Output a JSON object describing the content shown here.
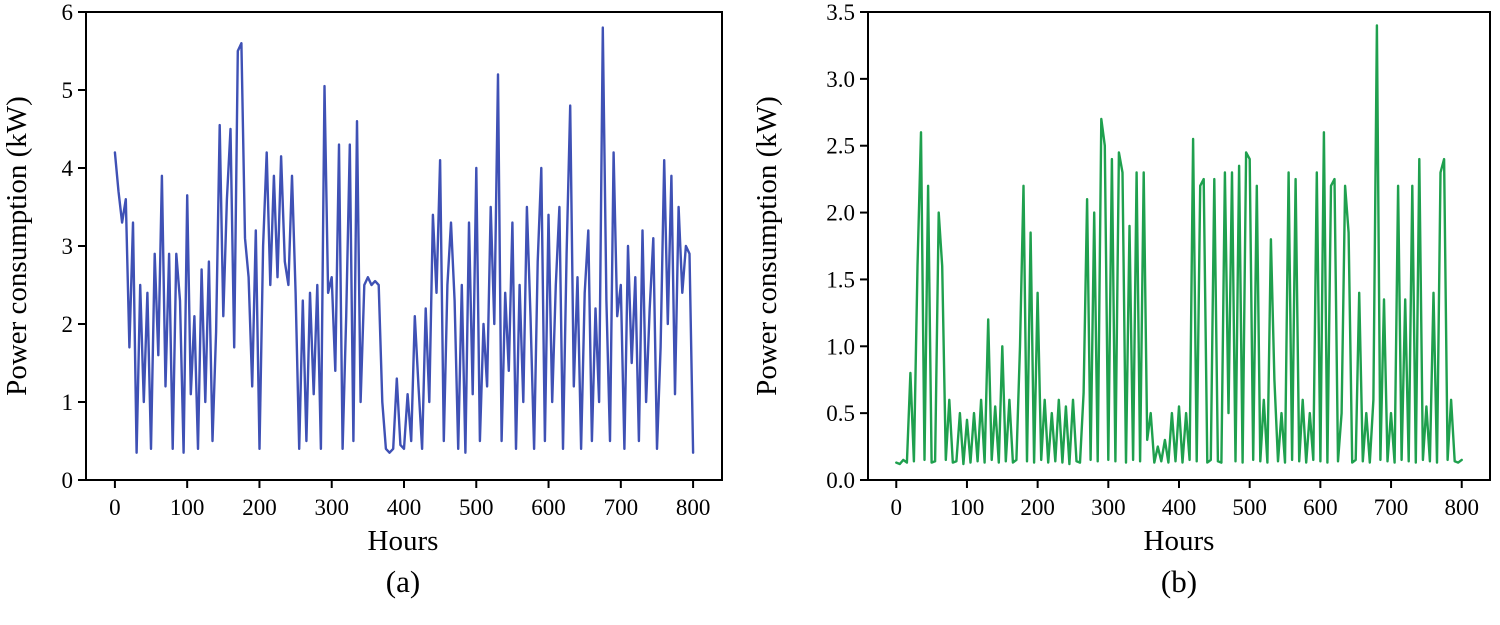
{
  "figure": {
    "background": "#ffffff",
    "description": "Two hourly power-consumption time series plots, panel (a) in blue and panel (b) in green"
  },
  "chart_data": [
    {
      "type": "line",
      "caption": "(a)",
      "xlabel": "Hours",
      "ylabel": "Power consumption (kW)",
      "color": "#3f51b5",
      "xlim": [
        -40,
        840
      ],
      "ylim": [
        0,
        6
      ],
      "xticks": [
        0,
        100,
        200,
        300,
        400,
        500,
        600,
        700,
        800
      ],
      "xtick_labels": [
        "0",
        "100",
        "200",
        "300",
        "400",
        "500",
        "600",
        "700",
        "800"
      ],
      "yticks": [
        0,
        1,
        2,
        3,
        4,
        5,
        6
      ],
      "ytick_labels": [
        "0",
        "1",
        "2",
        "3",
        "4",
        "5",
        "6"
      ],
      "grid": false,
      "legend": false,
      "x_start": 0,
      "x_step": 5,
      "values": [
        4.2,
        3.7,
        3.3,
        3.6,
        1.7,
        3.3,
        0.35,
        2.5,
        1.0,
        2.4,
        0.4,
        2.9,
        1.6,
        3.9,
        1.2,
        2.9,
        0.4,
        2.9,
        2.3,
        0.35,
        3.65,
        1.1,
        2.1,
        0.4,
        2.7,
        1.0,
        2.8,
        0.5,
        1.9,
        4.55,
        2.1,
        3.6,
        4.5,
        1.7,
        5.5,
        5.6,
        3.1,
        2.6,
        1.2,
        3.2,
        0.4,
        3.0,
        4.2,
        2.5,
        3.9,
        2.6,
        4.15,
        2.8,
        2.5,
        3.9,
        2.4,
        0.4,
        2.3,
        0.5,
        2.4,
        1.1,
        2.5,
        0.4,
        5.05,
        2.4,
        2.6,
        1.4,
        4.3,
        0.4,
        2.1,
        4.3,
        0.5,
        4.6,
        1.0,
        2.5,
        2.6,
        2.5,
        2.55,
        2.5,
        1.0,
        0.4,
        0.35,
        0.4,
        1.3,
        0.45,
        0.4,
        1.1,
        0.5,
        2.1,
        1.2,
        0.4,
        2.2,
        1.0,
        3.4,
        2.4,
        4.1,
        0.5,
        2.5,
        3.3,
        2.3,
        0.4,
        2.5,
        0.35,
        3.3,
        1.1,
        4.0,
        0.5,
        2.0,
        1.2,
        3.5,
        2.0,
        5.2,
        0.5,
        2.4,
        1.4,
        3.3,
        0.4,
        2.5,
        1.0,
        3.5,
        2.1,
        0.4,
        2.8,
        4.0,
        0.5,
        3.4,
        1.0,
        2.5,
        3.5,
        0.4,
        2.9,
        4.8,
        1.2,
        2.6,
        0.4,
        2.4,
        3.2,
        0.5,
        2.2,
        1.0,
        5.8,
        2.3,
        0.5,
        4.2,
        2.1,
        2.5,
        0.4,
        3.0,
        1.5,
        2.6,
        0.5,
        3.2,
        1.0,
        2.2,
        3.1,
        0.4,
        1.7,
        4.1,
        2.0,
        3.9,
        1.1,
        3.5,
        2.4,
        3.0,
        2.9,
        0.35
      ]
    },
    {
      "type": "line",
      "caption": "(b)",
      "xlabel": "Hours",
      "ylabel": "Power consumption (kW)",
      "color": "#1fa04e",
      "xlim": [
        -40,
        840
      ],
      "ylim": [
        0,
        3.5
      ],
      "xticks": [
        0,
        100,
        200,
        300,
        400,
        500,
        600,
        700,
        800
      ],
      "xtick_labels": [
        "0",
        "100",
        "200",
        "300",
        "400",
        "500",
        "600",
        "700",
        "800"
      ],
      "yticks": [
        0,
        0.5,
        1.0,
        1.5,
        2.0,
        2.5,
        3.0,
        3.5
      ],
      "ytick_labels": [
        "0.0",
        "0.5",
        "1.0",
        "1.5",
        "2.0",
        "2.5",
        "3.0",
        "3.5"
      ],
      "grid": false,
      "legend": false,
      "x_start": 0,
      "x_step": 5,
      "values": [
        0.13,
        0.12,
        0.15,
        0.13,
        0.8,
        0.14,
        1.6,
        2.6,
        0.15,
        2.2,
        0.13,
        0.14,
        2.0,
        1.6,
        0.15,
        0.6,
        0.13,
        0.14,
        0.5,
        0.12,
        0.45,
        0.13,
        0.5,
        0.14,
        0.6,
        0.13,
        1.2,
        0.15,
        0.55,
        0.13,
        1.0,
        0.14,
        0.6,
        0.13,
        0.15,
        1.0,
        2.2,
        0.14,
        1.85,
        0.13,
        1.4,
        0.15,
        0.6,
        0.13,
        0.5,
        0.14,
        0.6,
        0.13,
        0.55,
        0.12,
        0.6,
        0.14,
        0.13,
        0.65,
        2.1,
        0.15,
        2.0,
        0.14,
        2.7,
        2.5,
        0.15,
        2.4,
        0.14,
        2.45,
        2.3,
        0.13,
        1.9,
        0.15,
        2.3,
        0.14,
        2.3,
        0.3,
        0.5,
        0.13,
        0.25,
        0.14,
        0.3,
        0.13,
        0.5,
        0.14,
        0.55,
        0.13,
        0.5,
        0.15,
        2.55,
        0.14,
        2.2,
        2.25,
        0.13,
        0.15,
        2.25,
        0.14,
        0.13,
        2.3,
        0.5,
        2.3,
        0.14,
        2.35,
        0.13,
        2.45,
        2.4,
        0.15,
        2.2,
        0.14,
        0.6,
        0.13,
        1.8,
        0.75,
        0.14,
        0.5,
        0.13,
        2.3,
        0.15,
        2.25,
        0.14,
        0.6,
        0.13,
        0.5,
        0.15,
        2.3,
        0.14,
        2.6,
        0.13,
        2.2,
        2.25,
        0.14,
        0.5,
        2.2,
        1.85,
        0.13,
        0.15,
        1.4,
        0.14,
        0.5,
        0.13,
        0.6,
        3.4,
        0.15,
        1.35,
        0.14,
        0.5,
        0.13,
        2.2,
        0.15,
        1.35,
        0.14,
        2.2,
        0.13,
        2.4,
        0.15,
        0.55,
        0.14,
        1.4,
        0.13,
        2.3,
        2.4,
        0.15,
        0.6,
        0.14,
        0.13,
        0.15
      ]
    }
  ]
}
